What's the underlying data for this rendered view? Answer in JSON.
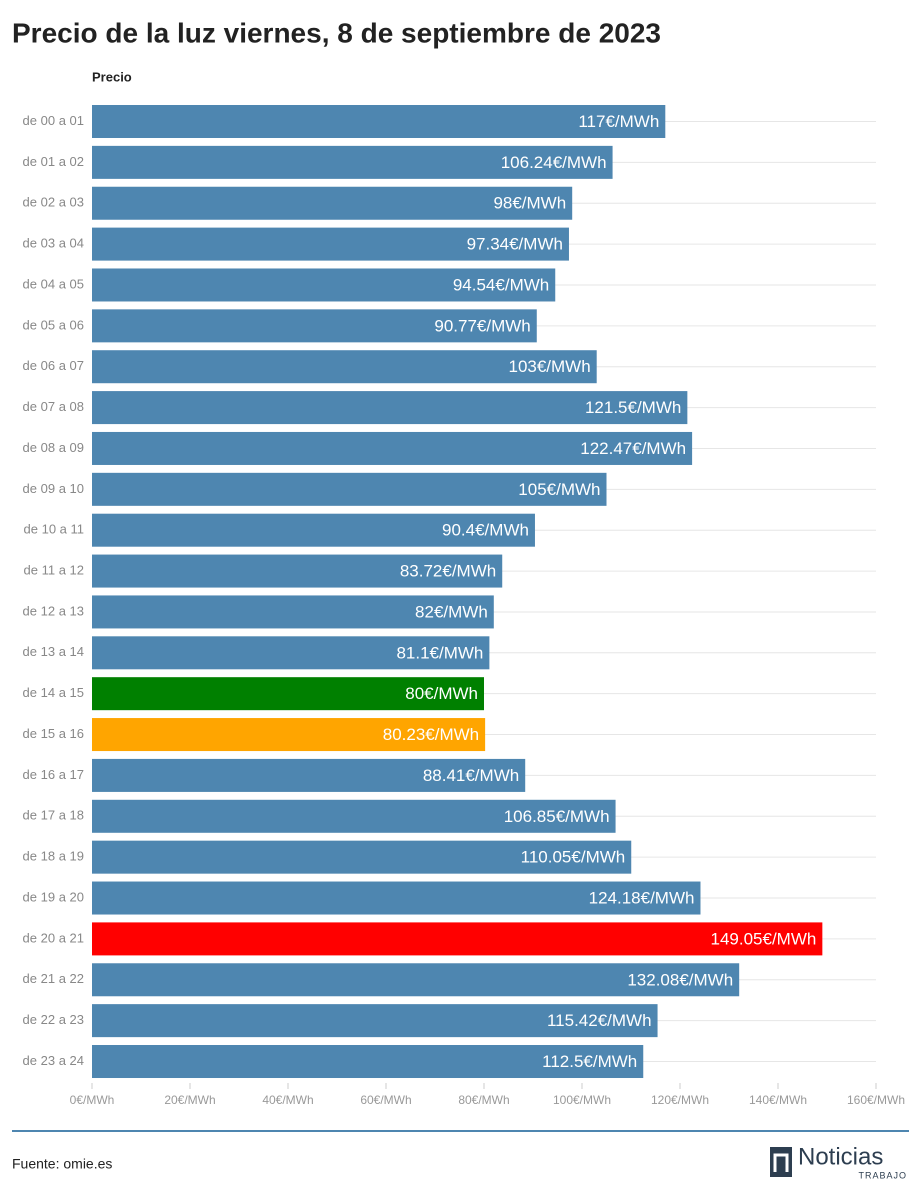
{
  "chart_data": {
    "type": "hbar",
    "title": "Precio de la luz viernes, 8 de septiembre de 2023",
    "value_header": "Precio",
    "categories": [
      "de 00 a 01",
      "de 01 a 02",
      "de 02 a 03",
      "de 03 a 04",
      "de 04 a 05",
      "de 05 a 06",
      "de 06 a 07",
      "de 07 a 08",
      "de 08 a 09",
      "de 09 a 10",
      "de 10 a 11",
      "de 11 a 12",
      "de 12 a 13",
      "de 13 a 14",
      "de 14 a 15",
      "de 15 a 16",
      "de 16 a 17",
      "de 17 a 18",
      "de 18 a 19",
      "de 19 a 20",
      "de 20 a 21",
      "de 21 a 22",
      "de 22 a 23",
      "de 23 a 24"
    ],
    "values": [
      117,
      106.24,
      98,
      97.34,
      94.54,
      90.77,
      103,
      121.5,
      122.47,
      105,
      90.4,
      83.72,
      82,
      81.1,
      80,
      80.23,
      88.41,
      106.85,
      110.05,
      124.18,
      149.05,
      132.08,
      115.42,
      112.5
    ],
    "value_labels": [
      "117€/MWh",
      "106.24€/MWh",
      "98€/MWh",
      "97.34€/MWh",
      "94.54€/MWh",
      "90.77€/MWh",
      "103€/MWh",
      "121.5€/MWh",
      "122.47€/MWh",
      "105€/MWh",
      "90.4€/MWh",
      "83.72€/MWh",
      "82€/MWh",
      "81.1€/MWh",
      "80€/MWh",
      "80.23€/MWh",
      "88.41€/MWh",
      "106.85€/MWh",
      "110.05€/MWh",
      "124.18€/MWh",
      "149.05€/MWh",
      "132.08€/MWh",
      "115.42€/MWh",
      "112.5€/MWh"
    ],
    "colors": [
      "#4e86b0",
      "#4e86b0",
      "#4e86b0",
      "#4e86b0",
      "#4e86b0",
      "#4e86b0",
      "#4e86b0",
      "#4e86b0",
      "#4e86b0",
      "#4e86b0",
      "#4e86b0",
      "#4e86b0",
      "#4e86b0",
      "#4e86b0",
      "#008000",
      "#ffa500",
      "#4e86b0",
      "#4e86b0",
      "#4e86b0",
      "#4e86b0",
      "#ff0000",
      "#4e86b0",
      "#4e86b0",
      "#4e86b0"
    ],
    "xlim": [
      0,
      160
    ],
    "xticks": [
      {
        "value": 0,
        "label": "0€/MWh"
      },
      {
        "value": 20,
        "label": "20€/MWh"
      },
      {
        "value": 40,
        "label": "40€/MWh"
      },
      {
        "value": 60,
        "label": "60€/MWh"
      },
      {
        "value": 80,
        "label": "80€/MWh"
      },
      {
        "value": 100,
        "label": "100€/MWh"
      },
      {
        "value": 120,
        "label": "120€/MWh"
      },
      {
        "value": 140,
        "label": "140€/MWh"
      },
      {
        "value": 160,
        "label": "160€/MWh"
      }
    ],
    "grid": true
  },
  "source": "Fuente: omie.es",
  "logo": {
    "name": "Noticias",
    "sub": "TRABAJO"
  }
}
